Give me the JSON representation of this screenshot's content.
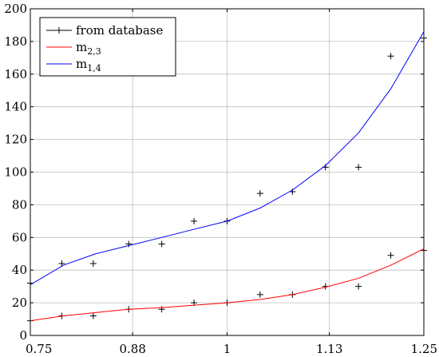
{
  "chart_data": {
    "type": "line",
    "xlim": [
      0.75,
      1.25
    ],
    "ylim": [
      0,
      200
    ],
    "x_ticks": [
      {
        "value": 0.75,
        "label": "0.75"
      },
      {
        "value": 0.88,
        "label": "0.88"
      },
      {
        "value": 1.0,
        "label": "1"
      },
      {
        "value": 1.13,
        "label": "1.13"
      },
      {
        "value": 1.25,
        "label": "1.25"
      }
    ],
    "y_ticks": [
      0,
      20,
      40,
      60,
      80,
      100,
      120,
      140,
      160,
      180,
      200
    ],
    "grid": true,
    "legend_position": "top-left",
    "series": [
      {
        "name": "from database",
        "style": "marker-only",
        "marker": "plus",
        "color": "#000000",
        "points": [
          [
            0.75,
            9
          ],
          [
            0.79,
            12
          ],
          [
            0.83,
            12
          ],
          [
            0.75,
            32
          ],
          [
            0.79,
            44
          ],
          [
            0.83,
            44
          ],
          [
            0.875,
            16
          ],
          [
            0.875,
            56
          ],
          [
            0.917,
            16
          ],
          [
            0.917,
            56
          ],
          [
            0.958,
            20
          ],
          [
            0.958,
            70
          ],
          [
            1.0,
            20
          ],
          [
            1.0,
            70
          ],
          [
            1.042,
            25
          ],
          [
            1.042,
            87
          ],
          [
            1.083,
            25
          ],
          [
            1.083,
            88
          ],
          [
            1.125,
            30
          ],
          [
            1.125,
            103
          ],
          [
            1.167,
            30
          ],
          [
            1.167,
            103
          ],
          [
            1.208,
            49
          ],
          [
            1.208,
            171
          ],
          [
            1.25,
            52
          ],
          [
            1.25,
            182
          ]
        ]
      },
      {
        "name": "m",
        "name_subscript": "2,3",
        "style": "line",
        "color": "#ff0000",
        "points": [
          [
            0.75,
            9
          ],
          [
            0.792,
            12
          ],
          [
            0.833,
            14
          ],
          [
            0.875,
            16
          ],
          [
            0.917,
            17
          ],
          [
            0.958,
            18.5
          ],
          [
            1.0,
            20
          ],
          [
            1.042,
            22
          ],
          [
            1.083,
            25
          ],
          [
            1.125,
            29.5
          ],
          [
            1.167,
            35
          ],
          [
            1.208,
            43
          ],
          [
            1.25,
            53
          ]
        ]
      },
      {
        "name": "m",
        "name_subscript": "1,4",
        "style": "line",
        "color": "#0000ff",
        "points": [
          [
            0.75,
            31
          ],
          [
            0.792,
            43
          ],
          [
            0.833,
            50
          ],
          [
            0.875,
            55
          ],
          [
            0.917,
            60
          ],
          [
            0.958,
            65
          ],
          [
            1.0,
            70
          ],
          [
            1.042,
            78
          ],
          [
            1.083,
            89
          ],
          [
            1.125,
            104
          ],
          [
            1.167,
            124
          ],
          [
            1.208,
            151
          ],
          [
            1.25,
            186
          ]
        ]
      }
    ]
  }
}
